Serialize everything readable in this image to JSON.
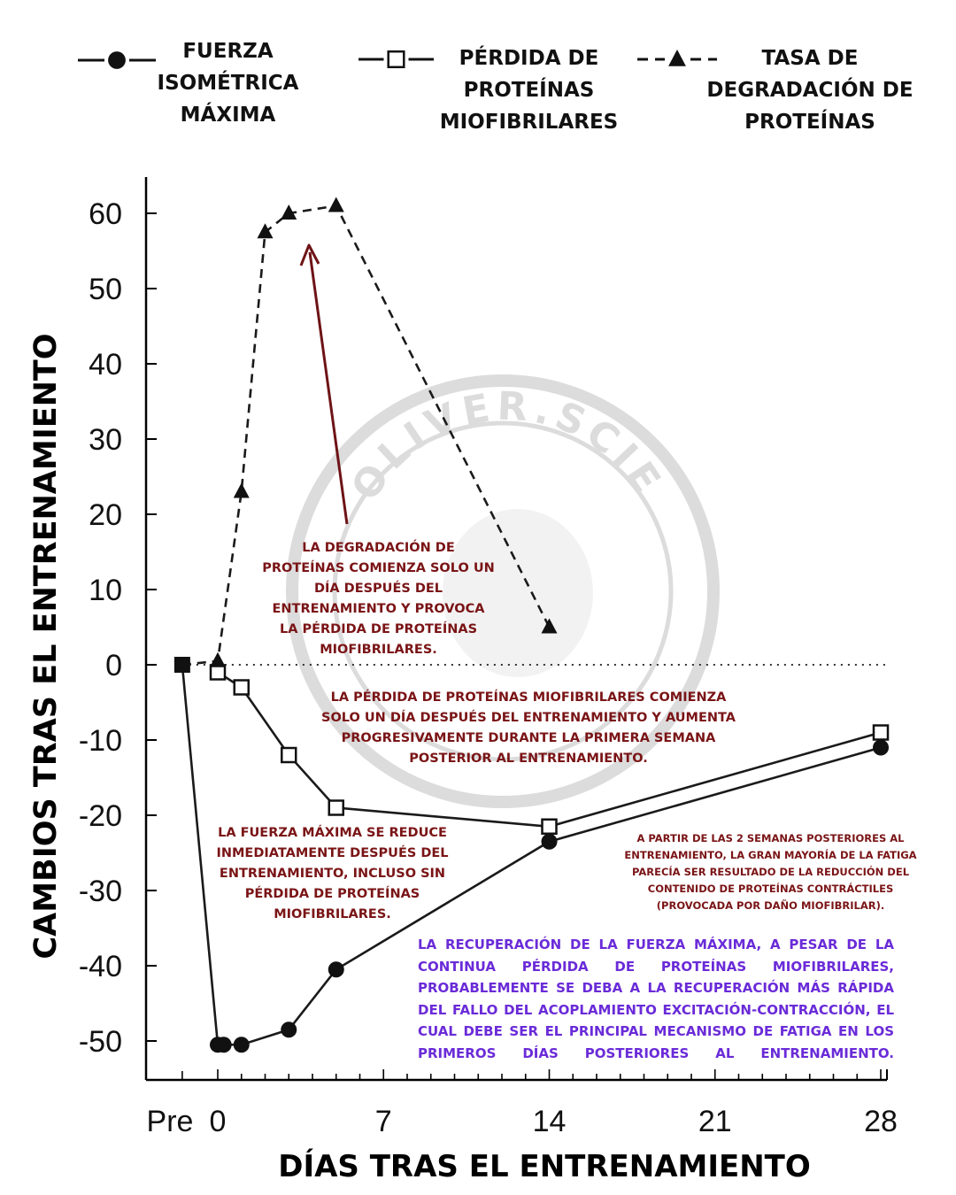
{
  "legend": [
    {
      "label_lines": [
        "FUERZA",
        "ISOMÉTRICA",
        "MÁXIMA"
      ],
      "marker": "filled-circle",
      "line": "solid"
    },
    {
      "label_lines": [
        "PÉRDIDA DE",
        "PROTEÍNAS",
        "MIOFIBRILARES"
      ],
      "marker": "open-square",
      "line": "solid"
    },
    {
      "label_lines": [
        "TASA DE",
        "DEGRADACIÓN DE",
        "PROTEÍNAS"
      ],
      "marker": "filled-triangle",
      "line": "dashed"
    }
  ],
  "annotations": {
    "degradation": "LA DEGRADACIÓN DE PROTEÍNAS COMIENZA SOLO UN DÍA DESPUÉS DEL ENTRENAMIENTO Y PROVOCA LA PÉRDIDA DE PROTEÍNAS MIOFIBRILARES.",
    "loss": "LA PÉRDIDA DE PROTEÍNAS MIOFIBRILARES COMIENZA SOLO UN DÍA DESPUÉS DEL ENTRENAMIENTO Y AUMENTA PROGRESIVAMENTE DURANTE LA PRIMERA SEMANA POSTERIOR AL ENTRENAMIENTO.",
    "strength": "LA FUERZA MÁXIMA SE REDUCE INMEDIATAMENTE DESPUÉS DEL ENTRENAMIENTO, INCLUSO SIN PÉRDIDA DE PROTEÍNAS MIOFIBRILARES.",
    "two_weeks": "A PARTIR DE LAS 2 SEMANAS POSTERIORES AL ENTRENAMIENTO, LA GRAN MAYORÍA DE LA FATIGA PARECÍA SER RESULTADO DE LA REDUCCIÓN DEL CONTENIDO DE PROTEÍNAS CONTRÁCTILES (PROVOCADA POR DAÑO MIOFIBRILAR).",
    "recovery": "LA RECUPERACIÓN DE LA FUERZA MÁXIMA, A PESAR DE LA CONTINUA PÉRDIDA DE PROTEÍNAS MIOFIBRILARES, PROBABLEMENTE SE DEBA A LA RECUPERACIÓN MÁS RÁPIDA DEL FALLO DEL ACOPLAMIENTO EXCITACIÓN-CONTRACCIÓN, EL CUAL DEBE SER EL PRINCIPAL MECANISMO DE FATIGA EN LOS PRIMEROS DÍAS POSTERIORES AL ENTRENAMIENTO."
  },
  "watermark": "OLIVER.SCIENCE",
  "colors": {
    "maroon": "#7a1416",
    "purple": "#6a2bd8",
    "arrow": "#6e1316",
    "watermark": "#dcdcdc",
    "ink": "#111111"
  },
  "chart_data": {
    "type": "line",
    "xlabel": "DÍAS TRAS EL ENTRENAMIENTO",
    "ylabel": "CAMBIOS TRAS EL ENTRENAMIENTO",
    "xlim": [
      -5,
      28
    ],
    "ylim": [
      -54,
      65
    ],
    "x_ticks": [
      {
        "value": -5,
        "label": "Pre"
      },
      {
        "value": 0,
        "label": "0"
      },
      {
        "value": 7,
        "label": "7"
      },
      {
        "value": 14,
        "label": "14"
      },
      {
        "value": 21,
        "label": "21"
      },
      {
        "value": 28,
        "label": "28"
      }
    ],
    "y_ticks": [
      60,
      50,
      40,
      30,
      20,
      10,
      0,
      -10,
      -20,
      -30,
      -40,
      -50
    ],
    "reference_line": {
      "y": 0,
      "style": "dotted"
    },
    "baseline": {
      "x": -1.5,
      "y": 0,
      "marker": "filled-square"
    },
    "series": [
      {
        "name": "FUERZA ISOMÉTRICA MÁXIMA",
        "marker": "filled-circle",
        "line": "solid",
        "points": [
          [
            -1.5,
            0
          ],
          [
            0,
            -50.5
          ],
          [
            0.25,
            -50.5
          ],
          [
            1,
            -50.5
          ],
          [
            3,
            -48.5
          ],
          [
            5,
            -40.5
          ],
          [
            14,
            -23.5
          ],
          [
            28,
            -11
          ]
        ]
      },
      {
        "name": "PÉRDIDA DE PROTEÍNAS MIOFIBRILARES",
        "marker": "open-square",
        "line": "solid",
        "points": [
          [
            0,
            -1
          ],
          [
            1,
            -3
          ],
          [
            3,
            -12
          ],
          [
            5,
            -19
          ],
          [
            14,
            -21.5
          ],
          [
            28,
            -9
          ]
        ]
      },
      {
        "name": "TASA DE DEGRADACIÓN DE PROTEÍNAS",
        "marker": "filled-triangle",
        "line": "dashed",
        "points": [
          [
            -1.5,
            0
          ],
          [
            0,
            0.5
          ],
          [
            1,
            23
          ],
          [
            2,
            57.5
          ],
          [
            3,
            60
          ],
          [
            5,
            61
          ],
          [
            14,
            5
          ]
        ]
      }
    ]
  }
}
